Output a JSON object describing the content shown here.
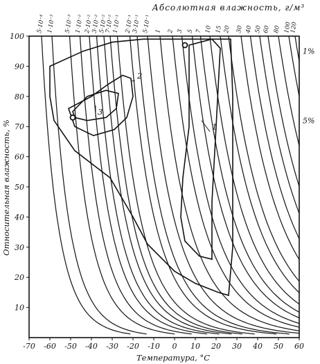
{
  "chart_data": {
    "type": "line",
    "title": "Абсолютная влажность, г/м³",
    "xlabel": "Температура, °C",
    "ylabel": "Относительная влажность, %",
    "xlim": [
      -70,
      60
    ],
    "ylim": [
      0,
      100
    ],
    "grid": false,
    "x_ticks": [
      "-70",
      "-60",
      "-50",
      "-40",
      "-30",
      "-20",
      "-10",
      "0",
      "10",
      "20",
      "30",
      "40",
      "50",
      "60"
    ],
    "y_ticks": [
      "10",
      "20",
      "30",
      "40",
      "50",
      "60",
      "70",
      "80",
      "90",
      "100"
    ],
    "isolines_abs_humidity_g_m3": {
      "labels": [
        "5·10⁻⁴",
        "1·10⁻³",
        "5·10⁻³",
        "1·10⁻²",
        "2·10⁻²",
        "3·10⁻²",
        "5·10⁻²",
        "7·10⁻²",
        "1·10⁻¹",
        "2·10⁻¹",
        "3·10⁻¹",
        "5·10⁻¹",
        "1",
        "2",
        "3",
        "5",
        "7",
        "10",
        "15",
        "20",
        "30",
        "40",
        "50",
        "60",
        "80",
        "100",
        "120"
      ],
      "t_at_100pct": [
        -64,
        -59,
        -50.5,
        -45.5,
        -41,
        -37.5,
        -34,
        -31,
        -27.5,
        -21.5,
        -18,
        -13,
        -7,
        -1,
        3.5,
        8.5,
        12.5,
        17,
        22,
        26,
        32,
        36.5,
        41,
        45,
        50,
        55,
        58
      ]
    },
    "right_labels": [
      "1%",
      "5%"
    ],
    "regions": [
      {
        "name": "1",
        "boundary": [
          [
            -60,
            90
          ],
          [
            -44,
            95
          ],
          [
            -30,
            98
          ],
          [
            -15,
            99
          ],
          [
            0,
            99
          ],
          [
            15,
            99
          ],
          [
            27,
            99
          ],
          [
            28,
            80
          ],
          [
            28,
            50
          ],
          [
            28,
            30
          ],
          [
            26,
            14
          ],
          [
            21,
            15
          ],
          [
            10,
            18
          ],
          [
            0,
            22
          ],
          [
            -13,
            31
          ],
          [
            -20,
            40
          ],
          [
            -31,
            53
          ],
          [
            -48,
            62
          ],
          [
            -58,
            72
          ],
          [
            -60,
            80
          ],
          [
            -60,
            90
          ]
        ]
      },
      {
        "name": "1-inner",
        "boundary": [
          [
            7,
            97
          ],
          [
            7,
            70
          ],
          [
            4,
            53
          ],
          [
            3,
            40
          ],
          [
            5,
            32
          ],
          [
            12,
            27
          ],
          [
            18,
            26
          ],
          [
            18,
            45
          ],
          [
            20,
            70
          ],
          [
            22,
            96
          ],
          [
            18,
            99
          ],
          [
            7,
            97
          ]
        ]
      },
      {
        "name": "2",
        "boundary": [
          [
            -51,
            76
          ],
          [
            -40,
            80
          ],
          [
            -32,
            84
          ],
          [
            -25,
            87
          ],
          [
            -21,
            86
          ],
          [
            -20,
            80
          ],
          [
            -23,
            73
          ],
          [
            -29,
            69
          ],
          [
            -39,
            67
          ],
          [
            -48,
            70
          ],
          [
            -51,
            76
          ]
        ]
      },
      {
        "name": "3",
        "boundary": [
          [
            -49,
            75
          ],
          [
            -42,
            80
          ],
          [
            -33,
            82
          ],
          [
            -27,
            81
          ],
          [
            -28,
            76
          ],
          [
            -33,
            73
          ],
          [
            -42,
            72
          ],
          [
            -48,
            73
          ],
          [
            -49,
            75
          ]
        ]
      }
    ],
    "markers": [
      {
        "t": -49,
        "rh": 73
      },
      {
        "t": 5,
        "rh": 97
      }
    ],
    "annotations": [
      "1",
      "2",
      "3"
    ]
  }
}
